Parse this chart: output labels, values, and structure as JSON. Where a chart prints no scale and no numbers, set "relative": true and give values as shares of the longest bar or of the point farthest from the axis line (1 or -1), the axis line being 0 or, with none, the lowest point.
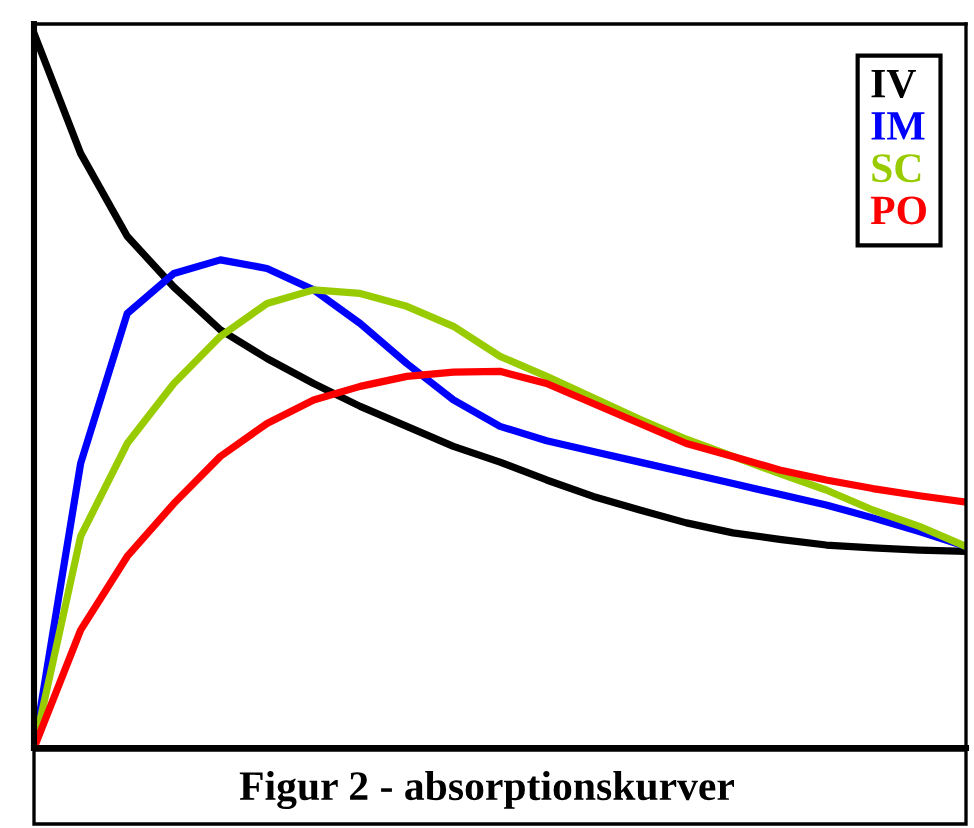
{
  "chart_data": {
    "type": "line",
    "title": "Figur 2 - absorptionskurver",
    "relative": true,
    "categories": [
      null,
      null,
      null,
      null,
      null,
      null,
      null,
      null,
      null,
      null,
      null,
      null,
      null,
      null,
      null,
      null,
      null,
      null,
      null,
      null,
      null
    ],
    "series": [
      {
        "name": "IV",
        "color": "#000000",
        "values": [
          1.0,
          0.832,
          0.716,
          0.645,
          0.585,
          0.545,
          0.51,
          0.478,
          0.45,
          0.422,
          0.4,
          0.375,
          0.352,
          0.333,
          0.315,
          0.301,
          0.292,
          0.284,
          0.28,
          0.277,
          0.275
        ]
      },
      {
        "name": "IM",
        "color": "#0000ff",
        "values": [
          0.0,
          0.398,
          0.608,
          0.664,
          0.683,
          0.671,
          0.641,
          0.594,
          0.538,
          0.487,
          0.45,
          0.43,
          0.415,
          0.4,
          0.385,
          0.37,
          0.355,
          0.34,
          0.322,
          0.303,
          0.282
        ]
      },
      {
        "name": "SC",
        "color": "#99cc00",
        "values": [
          0.0,
          0.296,
          0.426,
          0.51,
          0.576,
          0.622,
          0.641,
          0.636,
          0.618,
          0.59,
          0.548,
          0.52,
          0.49,
          0.46,
          0.432,
          0.408,
          0.384,
          0.361,
          0.333,
          0.31,
          0.282
        ]
      },
      {
        "name": "PO",
        "color": "#ff0000",
        "values": [
          0.0,
          0.165,
          0.268,
          0.342,
          0.408,
          0.454,
          0.487,
          0.506,
          0.52,
          0.526,
          0.527,
          0.51,
          0.482,
          0.454,
          0.426,
          0.408,
          0.389,
          0.375,
          0.363,
          0.353,
          0.344
        ]
      }
    ],
    "legend": "top right",
    "grid": false,
    "marker": "none",
    "line_style": "solid"
  }
}
